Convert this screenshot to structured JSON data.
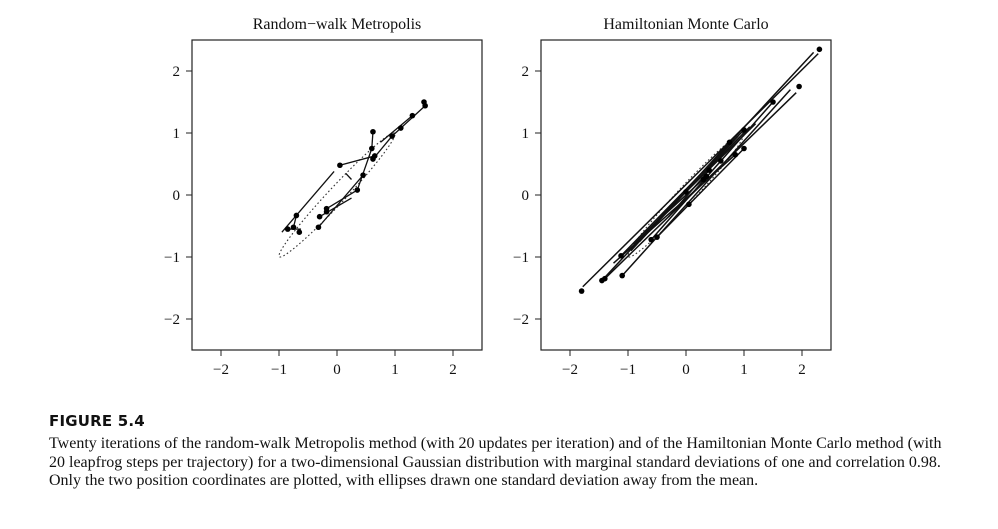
{
  "figure": {
    "label": "FIGURE 5.4",
    "caption": "Twenty iterations of the random-walk Metropolis method (with 20 updates per iteration) and of the Hamiltonian Monte Carlo method (with 20 leapfrog steps per trajectory) for a two-dimensional Gaussian distribution with marginal standard deviations of one and correlation 0.98. Only the two position coordinates are plotted, with ellipses drawn one standard deviation away from the mean."
  },
  "chart_data": [
    {
      "type": "scatter",
      "title": "Random−walk Metropolis",
      "xlabel": "",
      "ylabel": "",
      "xlim": [
        -2.5,
        2.5
      ],
      "ylim": [
        -2.5,
        2.5
      ],
      "xticks": [
        -2,
        -1,
        0,
        1,
        2
      ],
      "yticks": [
        -2,
        -1,
        0,
        1,
        2
      ],
      "tick_labels": [
        "−2",
        "−1",
        "0",
        "1",
        "2"
      ],
      "ellipse": {
        "correlation": 0.98,
        "sd": 1,
        "style": "dotted"
      },
      "points": [
        [
          -0.85,
          -0.55
        ],
        [
          -0.75,
          -0.52
        ],
        [
          -0.7,
          -0.33
        ],
        [
          -0.65,
          -0.6
        ],
        [
          -0.3,
          -0.35
        ],
        [
          -0.32,
          -0.52
        ],
        [
          -0.18,
          -0.22
        ],
        [
          -0.18,
          -0.27
        ],
        [
          0.05,
          0.48
        ],
        [
          0.35,
          0.08
        ],
        [
          0.45,
          0.32
        ],
        [
          0.6,
          0.75
        ],
        [
          0.62,
          1.02
        ],
        [
          0.62,
          0.58
        ],
        [
          0.65,
          0.63
        ],
        [
          0.95,
          0.95
        ],
        [
          1.1,
          1.08
        ],
        [
          1.3,
          1.28
        ],
        [
          1.5,
          1.5
        ],
        [
          1.52,
          1.44
        ]
      ],
      "trail_segments": [
        [
          [
            -0.95,
            -0.6
          ],
          [
            -0.05,
            0.38
          ]
        ],
        [
          [
            -0.85,
            -0.55
          ],
          [
            -0.62,
            -0.55
          ]
        ],
        [
          [
            -0.75,
            -0.52
          ],
          [
            -0.7,
            -0.33
          ]
        ],
        [
          [
            -0.3,
            -0.35
          ],
          [
            0.25,
            -0.05
          ]
        ],
        [
          [
            -0.32,
            -0.52
          ],
          [
            0.45,
            0.32
          ]
        ],
        [
          [
            -0.18,
            -0.22
          ],
          [
            0.35,
            0.08
          ]
        ],
        [
          [
            0.05,
            0.48
          ],
          [
            0.65,
            0.63
          ]
        ],
        [
          [
            0.35,
            0.08
          ],
          [
            0.6,
            0.75
          ]
        ],
        [
          [
            0.6,
            0.75
          ],
          [
            0.62,
            1.02
          ]
        ],
        [
          [
            0.62,
            0.58
          ],
          [
            0.95,
            0.95
          ]
        ],
        [
          [
            0.95,
            0.95
          ],
          [
            1.52,
            1.44
          ]
        ],
        [
          [
            0.75,
            0.85
          ],
          [
            1.3,
            1.28
          ]
        ],
        [
          [
            0.15,
            0.35
          ],
          [
            0.25,
            0.25
          ]
        ]
      ]
    },
    {
      "type": "scatter",
      "title": "Hamiltonian Monte Carlo",
      "xlabel": "",
      "ylabel": "",
      "xlim": [
        -2.5,
        2.5
      ],
      "ylim": [
        -2.5,
        2.5
      ],
      "xticks": [
        -2,
        -1,
        0,
        1,
        2
      ],
      "yticks": [
        -2,
        -1,
        0,
        1,
        2
      ],
      "tick_labels": [
        "−2",
        "−1",
        "0",
        "1",
        "2"
      ],
      "ellipse": {
        "correlation": 0.98,
        "sd": 1,
        "style": "dotted"
      },
      "points": [
        [
          -1.8,
          -1.55
        ],
        [
          -1.45,
          -1.38
        ],
        [
          -1.4,
          -1.35
        ],
        [
          -1.12,
          -0.98
        ],
        [
          -1.1,
          -1.3
        ],
        [
          -0.6,
          -0.72
        ],
        [
          -0.5,
          -0.68
        ],
        [
          0.0,
          0.05
        ],
        [
          0.05,
          -0.15
        ],
        [
          0.3,
          0.25
        ],
        [
          0.35,
          0.3
        ],
        [
          0.4,
          0.4
        ],
        [
          0.75,
          0.85
        ],
        [
          0.85,
          0.65
        ],
        [
          1.0,
          0.75
        ],
        [
          1.0,
          1.05
        ],
        [
          1.5,
          1.5
        ],
        [
          1.95,
          1.75
        ],
        [
          2.3,
          2.35
        ],
        [
          0.6,
          0.55
        ]
      ],
      "trajectories": [
        [
          [
            -1.78,
            -1.48
          ],
          [
            2.28,
            2.28
          ]
        ],
        [
          [
            -1.45,
            -1.38
          ],
          [
            2.2,
            2.3
          ]
        ],
        [
          [
            -1.4,
            -1.35
          ],
          [
            1.9,
            1.65
          ]
        ],
        [
          [
            -1.12,
            -0.98
          ],
          [
            1.0,
            1.05
          ]
        ],
        [
          [
            -1.1,
            -1.3
          ],
          [
            1.8,
            1.7
          ]
        ],
        [
          [
            -0.6,
            -0.72
          ],
          [
            1.5,
            1.5
          ]
        ],
        [
          [
            -0.5,
            -0.68
          ],
          [
            1.0,
            0.75
          ]
        ],
        [
          [
            -1.25,
            -1.1
          ],
          [
            0.85,
            0.65
          ]
        ],
        [
          [
            -0.9,
            -0.8
          ],
          [
            1.1,
            1.1
          ]
        ],
        [
          [
            -0.95,
            -0.9
          ],
          [
            0.75,
            0.85
          ]
        ],
        [
          [
            -0.3,
            -0.35
          ],
          [
            0.4,
            0.4
          ]
        ],
        [
          [
            -0.7,
            -0.6
          ],
          [
            0.35,
            0.3
          ]
        ],
        [
          [
            0.0,
            0.05
          ],
          [
            1.2,
            1.15
          ]
        ],
        [
          [
            -0.8,
            -0.75
          ],
          [
            0.9,
            0.95
          ]
        ]
      ]
    }
  ]
}
